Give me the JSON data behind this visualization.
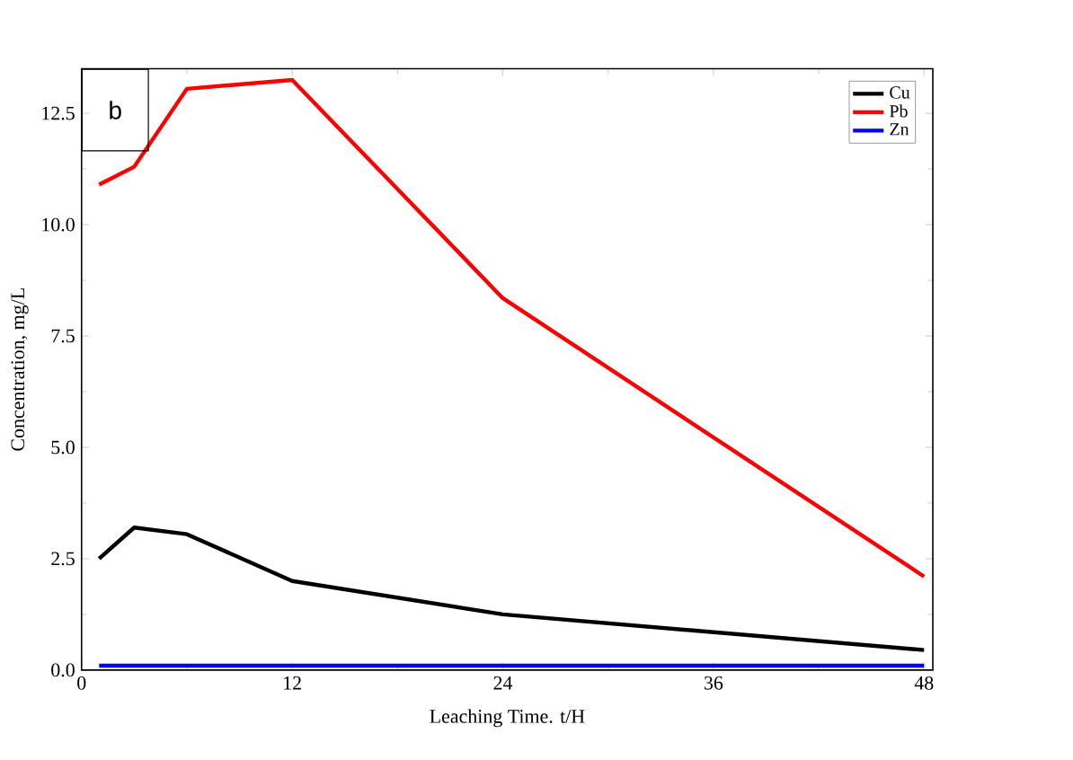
{
  "chart_data": {
    "type": "line",
    "xlabel": "Leaching Time. t/H",
    "ylabel": "Concentration, mg/L",
    "annotations": [
      "b"
    ],
    "x": [
      1,
      3,
      6,
      12,
      24,
      48
    ],
    "series": [
      {
        "name": "Cu",
        "color": "#000000",
        "values": [
          2.5,
          3.2,
          3.05,
          2.0,
          1.25,
          0.45
        ]
      },
      {
        "name": "Pb",
        "color": "#ff0000",
        "values": [
          10.9,
          11.3,
          13.05,
          13.25,
          8.35,
          2.1
        ]
      },
      {
        "name": "Zn",
        "color": "#0000ff",
        "values": [
          0.1,
          0.1,
          0.1,
          0.1,
          0.1,
          0.1
        ]
      }
    ],
    "xlim": [
      0,
      48.5
    ],
    "ylim": [
      0,
      13.5
    ],
    "xticks": [
      0,
      12,
      24,
      36,
      48
    ],
    "yticks": [
      {
        "value": 0,
        "label": "0.0"
      },
      {
        "value": 2.5,
        "label": "2.5"
      },
      {
        "value": 5,
        "label": "5.0"
      },
      {
        "value": 7.5,
        "label": "7.5"
      },
      {
        "value": 10,
        "label": "10.0"
      },
      {
        "value": 12.5,
        "label": "12.5"
      }
    ],
    "legend": "top right",
    "grid": false,
    "marker": "none",
    "line_style": "solid"
  }
}
